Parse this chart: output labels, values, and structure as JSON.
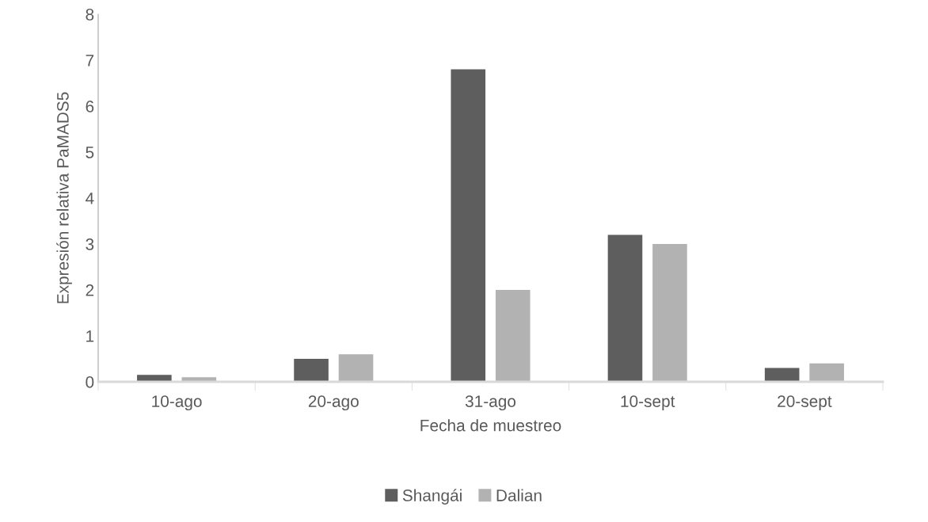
{
  "chart_data": {
    "type": "bar",
    "xlabel": "Fecha de muestreo",
    "ylabel": "Expresión relativa PaMADS5",
    "categories": [
      "10-ago",
      "20-ago",
      "31-ago",
      "10-sept",
      "20-sept"
    ],
    "series": [
      {
        "name": "Shangái",
        "color": "#5e5e5e",
        "values": [
          0.15,
          0.5,
          6.8,
          3.2,
          0.3
        ]
      },
      {
        "name": "Dalian",
        "color": "#b2b2b2",
        "values": [
          0.1,
          0.6,
          2.0,
          3.0,
          0.4
        ]
      }
    ],
    "ylim": [
      0,
      8
    ],
    "yticks": [
      0,
      1,
      2,
      3,
      4,
      5,
      6,
      7,
      8
    ],
    "grid": false,
    "legend": "bottom"
  }
}
